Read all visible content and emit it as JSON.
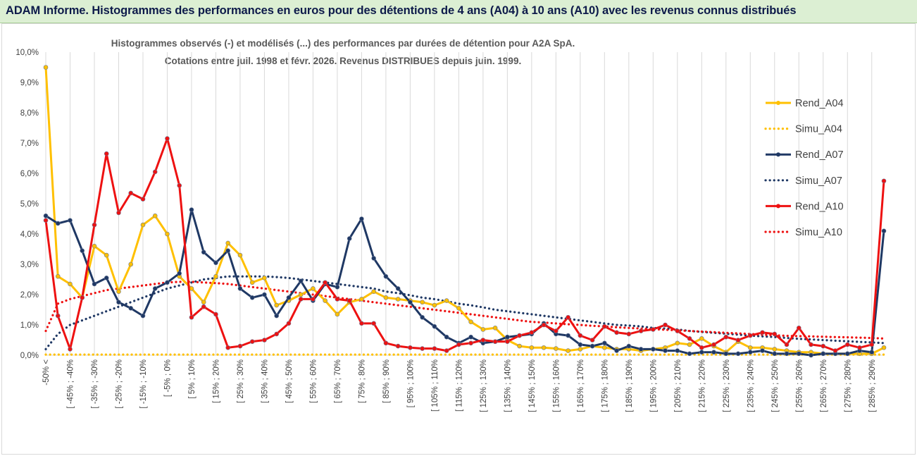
{
  "header": {
    "title": "ADAM Informe. Histogrammes des performances en euros pour des détentions de 4 ans (A04) à 10 ans (A10) avec les revenus connus distribués"
  },
  "chart_data": {
    "type": "line",
    "title_lines": [
      "Histogrammes observés (-) et modélisés (...) des performances par durées de détention pour A2A SpA.",
      "Cotations entre juil. 1998 et févr. 2026. Revenus DISTRIBUES depuis juin. 1999."
    ],
    "xlabel": "",
    "ylabel": "",
    "ylim": [
      0,
      10
    ],
    "y_ticks": [
      "0,0%",
      "1,0%",
      "2,0%",
      "3,0%",
      "4,0%",
      "5,0%",
      "6,0%",
      "7,0%",
      "8,0%",
      "9,0%",
      "10,0%"
    ],
    "x_labels": [
      "-50% <",
      "[ -45% ; -40%",
      "[ -35% ; -30%",
      "[ -25% ; -20%",
      "[ -15% ; -10%",
      "[ -5% ; 0%",
      "[ 5% ; 10%",
      "[ 15% ; 20%",
      "[ 25% ; 30%",
      "[ 35% ; 40%",
      "[ 45% ; 50%",
      "[ 55% ; 60%",
      "[ 65% ; 70%",
      "[ 75% ; 80%",
      "[ 85% ; 90%",
      "[ 95% ; 100%",
      "[ 105% ; 110%",
      "[ 115% ; 120%",
      "[ 125% ; 130%",
      "[ 135% ; 140%",
      "[ 145% ; 150%",
      "[ 155% ; 160%",
      "[ 165% ; 170%",
      "[ 175% ; 180%",
      "[ 185% ; 190%",
      "[ 195% ; 200%",
      "[ 205% ; 210%",
      "[ 215% ; 220%",
      "[ 225% ; 230%",
      "[ 235% ; 240%",
      "[ 245% ; 250%",
      "[ 255% ; 260%",
      "[ 265% ; 270%",
      "[ 275% ; 280%",
      "[ 285% ; 290%"
    ],
    "n_points": 70,
    "legend_position": "right",
    "series": [
      {
        "name": "Rend_A04",
        "style": "solid",
        "color": "#ffc000",
        "values": [
          9.5,
          2.6,
          2.35,
          1.9,
          3.6,
          3.3,
          2.1,
          3.0,
          4.3,
          4.6,
          4.0,
          2.6,
          2.2,
          1.75,
          2.6,
          3.7,
          3.3,
          2.4,
          2.55,
          1.65,
          1.8,
          2.0,
          2.2,
          1.8,
          1.35,
          1.75,
          1.85,
          2.1,
          1.9,
          1.85,
          1.8,
          1.75,
          1.65,
          1.8,
          1.55,
          1.1,
          0.85,
          0.9,
          0.5,
          0.3,
          0.25,
          0.25,
          0.22,
          0.15,
          0.2,
          0.3,
          0.25,
          0.2,
          0.2,
          0.15,
          0.2,
          0.25,
          0.4,
          0.35,
          0.55,
          0.3,
          0.1,
          0.45,
          0.25,
          0.25,
          0.2,
          0.15,
          0.1,
          0.1,
          0.05,
          0.05,
          0.05,
          0.05,
          0.05,
          0.25
        ]
      },
      {
        "name": "Simu_A04",
        "style": "dotted",
        "color": "#ffc000",
        "values": [
          0.02,
          0.02,
          0.02,
          0.02,
          0.02,
          0.02,
          0.02,
          0.02,
          0.02,
          0.02,
          0.02,
          0.02,
          0.02,
          0.02,
          0.02,
          0.02,
          0.02,
          0.02,
          0.02,
          0.02,
          0.02,
          0.02,
          0.02,
          0.02,
          0.02,
          0.02,
          0.02,
          0.02,
          0.02,
          0.02,
          0.02,
          0.02,
          0.02,
          0.02,
          0.02,
          0.02,
          0.02,
          0.02,
          0.02,
          0.02,
          0.02,
          0.02,
          0.02,
          0.02,
          0.02,
          0.02,
          0.02,
          0.02,
          0.02,
          0.02,
          0.02,
          0.02,
          0.02,
          0.02,
          0.02,
          0.02,
          0.02,
          0.02,
          0.02,
          0.02,
          0.02,
          0.02,
          0.02,
          0.02,
          0.02,
          0.02,
          0.02,
          0.02,
          0.02,
          0.02
        ]
      },
      {
        "name": "Rend_A07",
        "style": "solid",
        "color": "#1f3864",
        "values": [
          4.6,
          4.35,
          4.45,
          3.45,
          2.35,
          2.55,
          1.75,
          1.55,
          1.3,
          2.2,
          2.4,
          2.7,
          4.8,
          3.4,
          3.05,
          3.45,
          2.2,
          1.9,
          2.0,
          1.3,
          1.9,
          2.45,
          1.8,
          2.35,
          2.25,
          3.85,
          4.5,
          3.2,
          2.6,
          2.2,
          1.75,
          1.25,
          0.95,
          0.6,
          0.4,
          0.6,
          0.4,
          0.45,
          0.6,
          0.65,
          0.7,
          1.05,
          0.7,
          0.65,
          0.35,
          0.3,
          0.4,
          0.15,
          0.3,
          0.2,
          0.2,
          0.15,
          0.15,
          0.05,
          0.1,
          0.1,
          0.05,
          0.05,
          0.1,
          0.15,
          0.05,
          0.05,
          0.05,
          0.0,
          0.05,
          0.05,
          0.05,
          0.15,
          0.1,
          4.1
        ]
      },
      {
        "name": "Simu_A07",
        "style": "dotted",
        "color": "#1f3864",
        "values": [
          0.2,
          0.7,
          1.0,
          1.15,
          1.3,
          1.45,
          1.6,
          1.75,
          1.9,
          2.05,
          2.2,
          2.3,
          2.4,
          2.5,
          2.55,
          2.6,
          2.6,
          2.6,
          2.6,
          2.58,
          2.55,
          2.5,
          2.45,
          2.4,
          2.35,
          2.3,
          2.25,
          2.2,
          2.1,
          2.05,
          1.98,
          1.9,
          1.85,
          1.78,
          1.7,
          1.65,
          1.58,
          1.5,
          1.45,
          1.4,
          1.35,
          1.3,
          1.25,
          1.2,
          1.15,
          1.1,
          1.05,
          1.0,
          0.98,
          0.95,
          0.9,
          0.88,
          0.85,
          0.8,
          0.77,
          0.74,
          0.71,
          0.68,
          0.65,
          0.62,
          0.6,
          0.57,
          0.54,
          0.52,
          0.5,
          0.48,
          0.46,
          0.44,
          0.42,
          0.4
        ]
      },
      {
        "name": "Rend_A10",
        "style": "solid",
        "color": "#ee1111",
        "values": [
          4.45,
          1.3,
          0.2,
          1.9,
          4.3,
          6.65,
          4.7,
          5.35,
          5.15,
          6.05,
          7.15,
          5.6,
          1.25,
          1.6,
          1.35,
          0.25,
          0.3,
          0.45,
          0.5,
          0.7,
          1.05,
          1.85,
          1.85,
          2.4,
          1.85,
          1.8,
          1.05,
          1.05,
          0.4,
          0.3,
          0.25,
          0.22,
          0.22,
          0.15,
          0.35,
          0.4,
          0.5,
          0.45,
          0.45,
          0.65,
          0.75,
          1.0,
          0.8,
          1.25,
          0.65,
          0.5,
          0.95,
          0.75,
          0.7,
          0.8,
          0.85,
          1.0,
          0.8,
          0.55,
          0.25,
          0.35,
          0.6,
          0.5,
          0.65,
          0.75,
          0.7,
          0.35,
          0.9,
          0.35,
          0.3,
          0.15,
          0.35,
          0.25,
          0.35,
          5.75
        ]
      },
      {
        "name": "Simu_A10",
        "style": "dotted",
        "color": "#ee1111",
        "values": [
          0.8,
          1.7,
          1.85,
          1.95,
          2.05,
          2.15,
          2.2,
          2.25,
          2.3,
          2.35,
          2.4,
          2.42,
          2.42,
          2.4,
          2.38,
          2.35,
          2.3,
          2.25,
          2.2,
          2.15,
          2.1,
          2.05,
          2.0,
          1.95,
          1.9,
          1.85,
          1.8,
          1.75,
          1.7,
          1.65,
          1.6,
          1.55,
          1.5,
          1.45,
          1.4,
          1.35,
          1.3,
          1.25,
          1.2,
          1.15,
          1.1,
          1.08,
          1.05,
          1.02,
          1.0,
          0.97,
          0.95,
          0.92,
          0.9,
          0.88,
          0.86,
          0.84,
          0.82,
          0.8,
          0.78,
          0.76,
          0.74,
          0.72,
          0.7,
          0.68,
          0.66,
          0.64,
          0.63,
          0.62,
          0.61,
          0.6,
          0.59,
          0.58,
          0.57,
          0.55
        ]
      }
    ]
  }
}
